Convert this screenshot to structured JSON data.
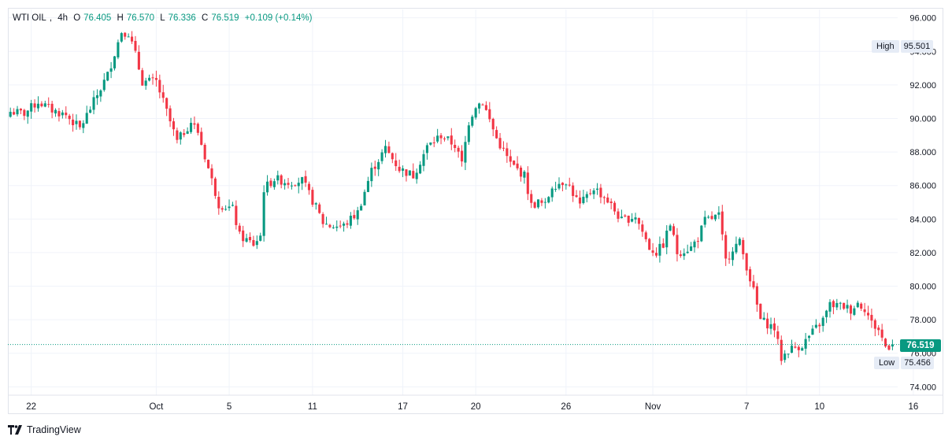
{
  "header": {
    "symbol": "WTI OIL",
    "interval": "4h",
    "open_label": "O",
    "open": "76.405",
    "high_label": "H",
    "high": "76.570",
    "low_label": "L",
    "low": "76.336",
    "close_label": "C",
    "close": "76.519",
    "change": "+0.109 (+0.14%)"
  },
  "markers": {
    "high_label": "High",
    "high_value": "95.501",
    "low_label": "Low",
    "low_value": "75.456",
    "last_value": "76.519"
  },
  "brand": {
    "name": "TradingView"
  },
  "colors": {
    "up": "#089981",
    "down": "#f23645",
    "grid": "#f0f3fa",
    "last_line": "#089981"
  },
  "chart_data": {
    "type": "candlestick",
    "title": "WTI OIL, 4h",
    "ylim": [
      73.5,
      96.5
    ],
    "yticks": [
      "96.000",
      "94.000",
      "92.000",
      "90.000",
      "88.000",
      "86.000",
      "84.000",
      "82.000",
      "80.000",
      "78.000",
      "76.000",
      "74.000"
    ],
    "ytick_values": [
      96,
      94,
      92,
      90,
      88,
      86,
      84,
      82,
      80,
      78,
      76,
      74
    ],
    "xticks": [
      {
        "label": "22",
        "i": 6
      },
      {
        "label": "Oct",
        "i": 42
      },
      {
        "label": "5",
        "i": 63
      },
      {
        "label": "11",
        "i": 87
      },
      {
        "label": "17",
        "i": 113
      },
      {
        "label": "20",
        "i": 134
      },
      {
        "label": "26",
        "i": 160
      },
      {
        "label": "Nov",
        "i": 185
      },
      {
        "label": "7",
        "i": 212
      },
      {
        "label": "10",
        "i": 233
      },
      {
        "label": "16",
        "i": 260
      }
    ],
    "close_key": [
      [
        0,
        90.4
      ],
      [
        4,
        90.3
      ],
      [
        8,
        91.0
      ],
      [
        12,
        90.5
      ],
      [
        16,
        90.2
      ],
      [
        20,
        89.4
      ],
      [
        24,
        91.0
      ],
      [
        28,
        92.6
      ],
      [
        32,
        95.2
      ],
      [
        34,
        95.1
      ],
      [
        36,
        93.8
      ],
      [
        38,
        92.2
      ],
      [
        42,
        92.2
      ],
      [
        44,
        91.0
      ],
      [
        48,
        88.6
      ],
      [
        52,
        89.8
      ],
      [
        54,
        89.2
      ],
      [
        58,
        86.3
      ],
      [
        60,
        84.9
      ],
      [
        64,
        84.6
      ],
      [
        66,
        83.0
      ],
      [
        70,
        82.5
      ],
      [
        72,
        83.0
      ],
      [
        73,
        85.8
      ],
      [
        76,
        86.4
      ],
      [
        80,
        86.2
      ],
      [
        84,
        86.3
      ],
      [
        88,
        84.7
      ],
      [
        90,
        83.8
      ],
      [
        92,
        83.6
      ],
      [
        96,
        83.6
      ],
      [
        100,
        84.4
      ],
      [
        104,
        86.9
      ],
      [
        108,
        88.2
      ],
      [
        112,
        87.0
      ],
      [
        116,
        86.6
      ],
      [
        120,
        88.3
      ],
      [
        124,
        89.0
      ],
      [
        128,
        88.4
      ],
      [
        130,
        87.3
      ],
      [
        132,
        89.8
      ],
      [
        134,
        90.8
      ],
      [
        136,
        91.0
      ],
      [
        140,
        88.8
      ],
      [
        144,
        87.3
      ],
      [
        148,
        86.6
      ],
      [
        150,
        84.8
      ],
      [
        152,
        85.0
      ],
      [
        154,
        84.8
      ],
      [
        156,
        86.0
      ],
      [
        160,
        86.3
      ],
      [
        164,
        84.8
      ],
      [
        168,
        85.9
      ],
      [
        172,
        85.1
      ],
      [
        176,
        83.9
      ],
      [
        180,
        84.2
      ],
      [
        184,
        82.3
      ],
      [
        186,
        82.0
      ],
      [
        188,
        82.5
      ],
      [
        190,
        83.7
      ],
      [
        192,
        82.0
      ],
      [
        196,
        82.3
      ],
      [
        198,
        82.9
      ],
      [
        200,
        83.9
      ],
      [
        204,
        84.2
      ],
      [
        206,
        81.5
      ],
      [
        208,
        82.3
      ],
      [
        210,
        82.6
      ],
      [
        212,
        81.2
      ],
      [
        214,
        79.7
      ],
      [
        216,
        78.0
      ],
      [
        220,
        77.5
      ],
      [
        222,
        75.7
      ],
      [
        224,
        76.2
      ],
      [
        228,
        76.5
      ],
      [
        232,
        77.5
      ],
      [
        234,
        78.0
      ],
      [
        236,
        78.9
      ],
      [
        240,
        78.8
      ],
      [
        242,
        78.6
      ],
      [
        244,
        79.0
      ],
      [
        246,
        78.7
      ],
      [
        248,
        77.8
      ],
      [
        250,
        77.4
      ],
      [
        252,
        76.4
      ],
      [
        254,
        76.52
      ]
    ]
  }
}
